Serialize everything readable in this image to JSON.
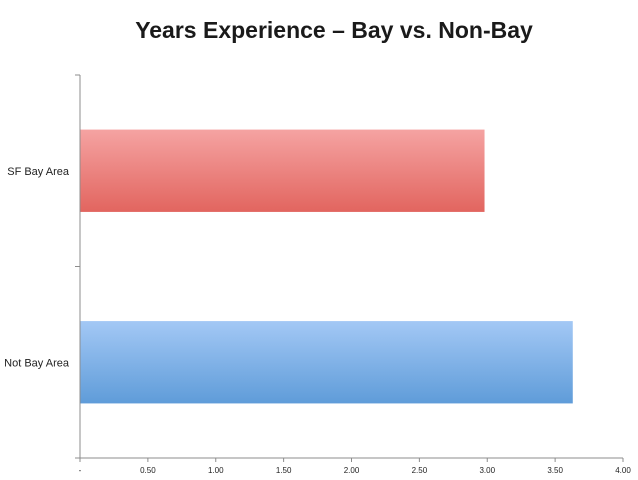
{
  "chart_data": {
    "type": "bar",
    "orientation": "horizontal",
    "title": "Years Experience – Bay vs. Non-Bay",
    "xlabel": "",
    "ylabel": "",
    "categories": [
      "SF Bay Area",
      "Not Bay Area"
    ],
    "values": [
      2.98,
      3.63
    ],
    "colors": [
      "#e8706c",
      "#6ea8e0"
    ],
    "xlim": [
      0,
      4
    ],
    "x_ticks": [
      "-",
      "0.50",
      "1.00",
      "1.50",
      "2.00",
      "2.50",
      "3.00",
      "3.50",
      "4.00"
    ],
    "grid": false,
    "legend": "none"
  }
}
